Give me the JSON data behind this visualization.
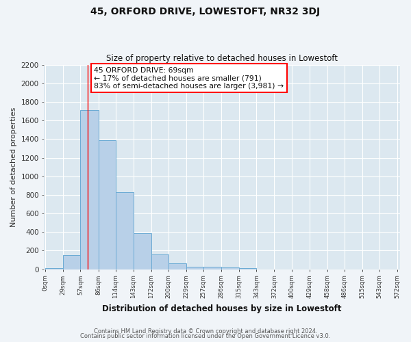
{
  "title": "45, ORFORD DRIVE, LOWESTOFT, NR32 3DJ",
  "subtitle": "Size of property relative to detached houses in Lowestoft",
  "xlabel": "Distribution of detached houses by size in Lowestoft",
  "ylabel": "Number of detached properties",
  "bar_values": [
    15,
    155,
    1710,
    1390,
    825,
    385,
    160,
    65,
    30,
    25,
    20,
    15
  ],
  "bin_edges": [
    0,
    29,
    57,
    86,
    114,
    143,
    172,
    200,
    229,
    257,
    286,
    315,
    343
  ],
  "x_tick_labels": [
    "0sqm",
    "29sqm",
    "57sqm",
    "86sqm",
    "114sqm",
    "143sqm",
    "172sqm",
    "200sqm",
    "229sqm",
    "257sqm",
    "286sqm",
    "315sqm",
    "343sqm",
    "372sqm",
    "400sqm",
    "429sqm",
    "458sqm",
    "486sqm",
    "515sqm",
    "543sqm",
    "572sqm"
  ],
  "x_tick_positions": [
    0,
    29,
    57,
    86,
    114,
    143,
    172,
    200,
    229,
    257,
    286,
    315,
    343,
    372,
    400,
    429,
    458,
    486,
    515,
    543,
    572
  ],
  "bar_color": "#b8d0e8",
  "bar_edge_color": "#6aaad4",
  "fig_bg_color": "#f0f4f8",
  "ax_bg_color": "#dce8f0",
  "grid_color": "#ffffff",
  "red_line_x": 69,
  "annotation_line1": "45 ORFORD DRIVE: 69sqm",
  "annotation_line2": "← 17% of detached houses are smaller (791)",
  "annotation_line3": "83% of semi-detached houses are larger (3,981) →",
  "ylim": [
    0,
    2200
  ],
  "yticks": [
    0,
    200,
    400,
    600,
    800,
    1000,
    1200,
    1400,
    1600,
    1800,
    2000,
    2200
  ],
  "footer_line1": "Contains HM Land Registry data © Crown copyright and database right 2024.",
  "footer_line2": "Contains public sector information licensed under the Open Government Licence v3.0."
}
